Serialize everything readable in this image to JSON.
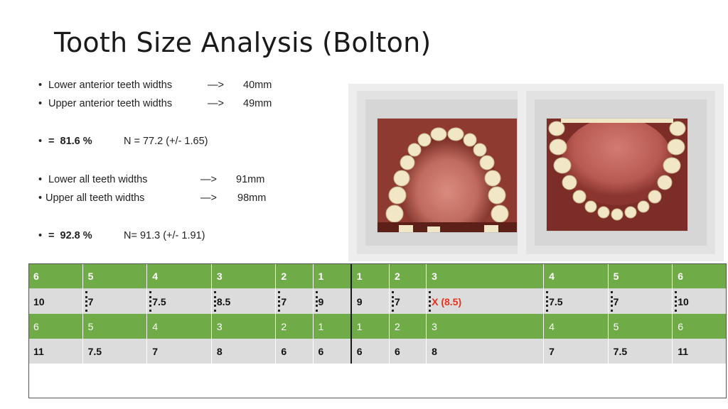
{
  "title": "Tooth Size Analysis (Bolton)",
  "bullets": {
    "lower_anterior": {
      "bullet": "•",
      "label": "Lower anterior teeth widths",
      "arrow": "—>",
      "value": "40mm"
    },
    "upper_anterior": {
      "bullet": "•",
      "label": "Upper anterior teeth widths",
      "arrow": "—>",
      "value": "49mm"
    },
    "anterior_ratio": {
      "bullet": "•",
      "prefix": "= ",
      "ratio": "81.6 %",
      "norm": "N = 77.2  (+/- 1.65)"
    },
    "lower_all": {
      "bullet": "•",
      "label": "Lower all teeth widths",
      "arrow": "—>",
      "value": "91mm"
    },
    "upper_all": {
      "bullet": "•",
      "label": "Upper all teeth widths",
      "arrow": "—>",
      "value": "98mm"
    },
    "overall_ratio": {
      "bullet": "•",
      "prefix": "= ",
      "ratio": "92.8 %",
      "norm": "N= 91.3  (+/- 1.91)"
    }
  },
  "table": {
    "row1": [
      "6",
      "5",
      "4",
      "3",
      "2",
      "1",
      "1",
      "2",
      "3",
      "4",
      "5",
      "6"
    ],
    "row2": [
      "10",
      "7",
      "7.5",
      "8.5",
      "7",
      "9",
      "9",
      "7",
      "X (8.5)",
      "7.5",
      "7",
      "10"
    ],
    "row3": [
      "6",
      "5",
      "4",
      "3",
      "2",
      "1",
      "1",
      "2",
      "3",
      "4",
      "5",
      "6"
    ],
    "row4": [
      "11",
      "7.5",
      "7",
      "8",
      "6",
      "6",
      "6",
      "6",
      "8",
      "7",
      "7.5",
      "11"
    ]
  },
  "colors": {
    "green": "#6fab47",
    "gray": "#dcdcdc",
    "highlight": "#e3321e"
  }
}
